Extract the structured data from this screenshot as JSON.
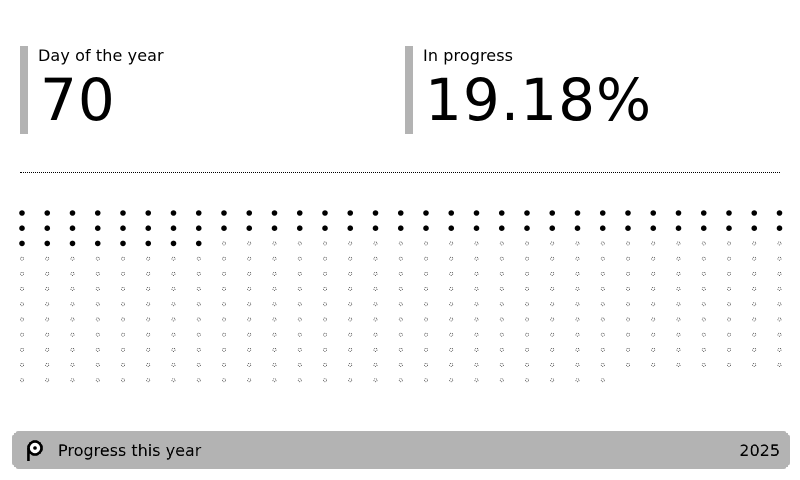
{
  "metrics": {
    "day": {
      "label": "Day of the year",
      "value": "70"
    },
    "progress": {
      "label": "In progress",
      "value": "19.18%"
    }
  },
  "grid": {
    "total": 365,
    "filled": 70,
    "columns": 31,
    "filled_color": "#000000",
    "empty_color": "#000000"
  },
  "footer": {
    "title": "Progress this year",
    "year": "2025",
    "logo_icon": "trmnl-logo-icon"
  }
}
